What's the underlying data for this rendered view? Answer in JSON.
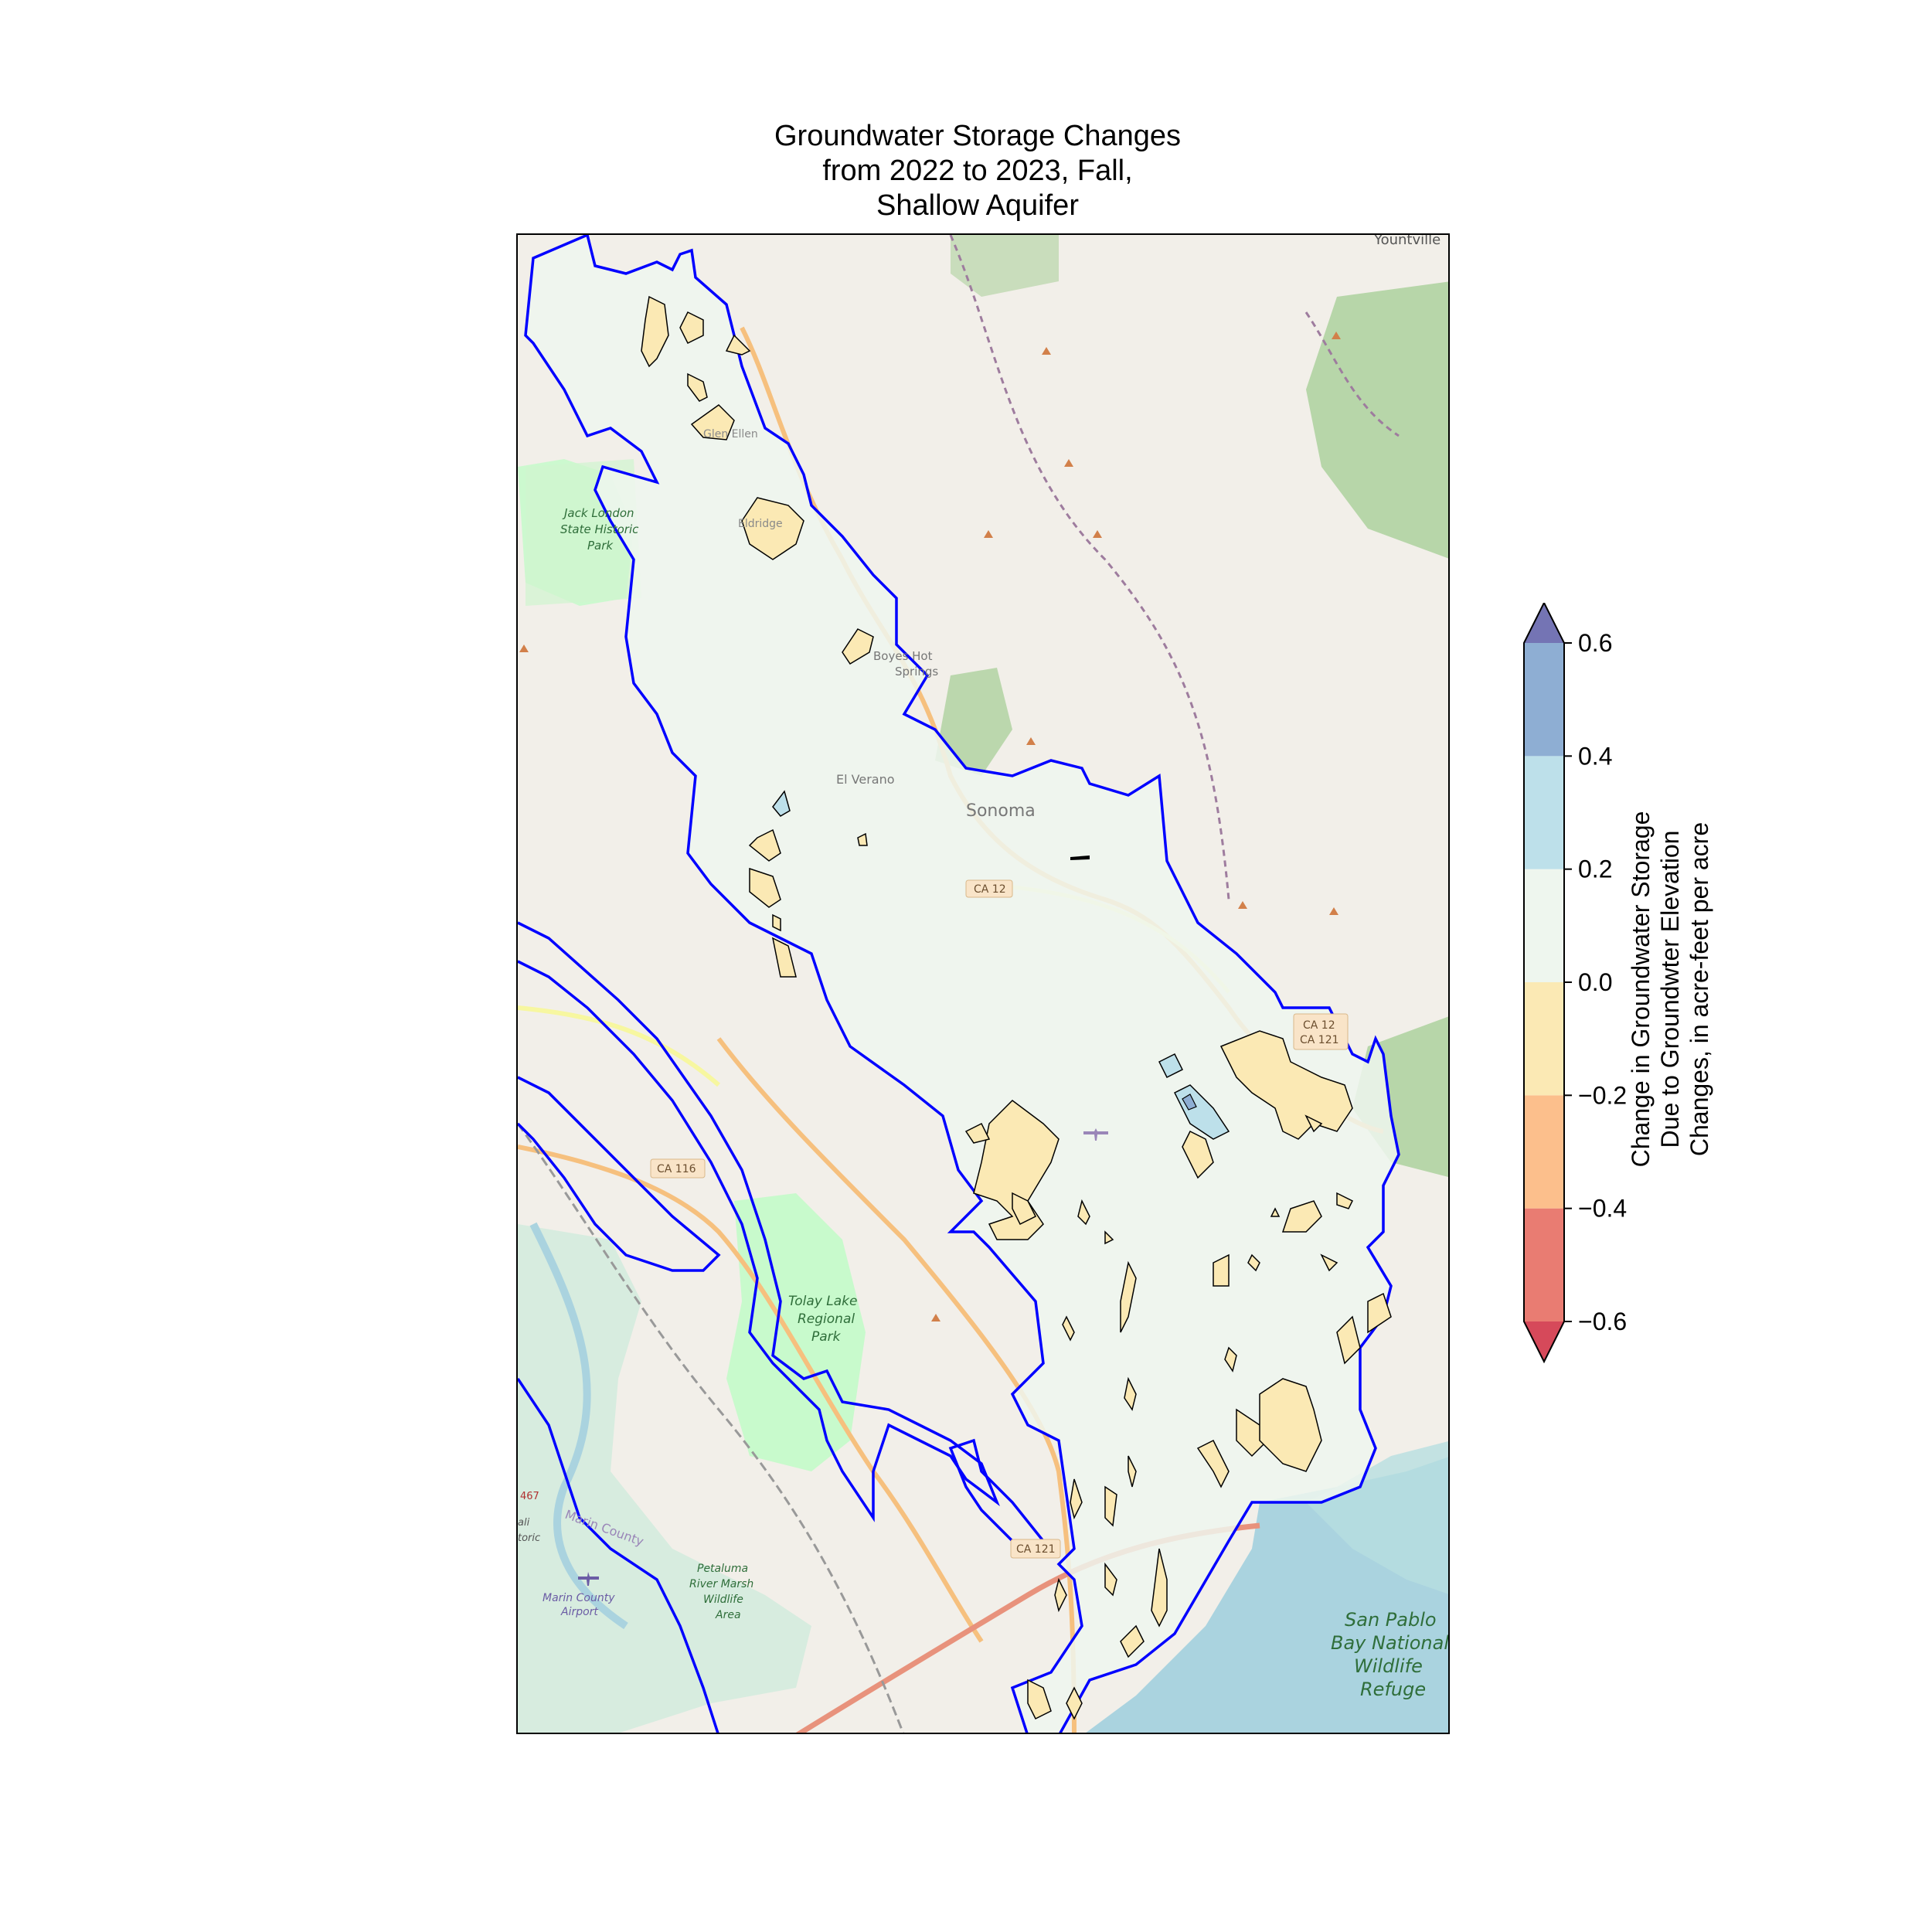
{
  "title": {
    "line1": "Groundwater Storage Changes",
    "line2": "from 2022 to 2023, Fall,",
    "line3": "Shallow Aquifer"
  },
  "map": {
    "place_labels": {
      "yountville": "Yountville",
      "jack_london_1": "Jack London",
      "jack_london_2": "State Historic",
      "jack_london_3": "Park",
      "boyes_1": "Boyes Hot",
      "boyes_2": "Springs",
      "el_verano": "El Verano",
      "sonoma": "Sonoma",
      "ca12": "CA 12",
      "ca12_121_a": "CA 12",
      "ca12_121_b": "CA 121",
      "ca116": "CA 116",
      "tolay_1": "Tolay Lake",
      "tolay_2": "Regional",
      "tolay_3": "Park",
      "ca121": "CA 121",
      "marin_county": "Marin County",
      "marin_airport_1": "Marin County",
      "marin_airport_2": "Airport",
      "petaluma_1": "Petaluma",
      "petaluma_2": "River Marsh",
      "petaluma_3": "Wildlife",
      "petaluma_4": "Area",
      "san_pablo_1": "San Pablo",
      "san_pablo_2": "Bay National",
      "san_pablo_3": "Wildlife",
      "san_pablo_4": "Refuge",
      "glen_ellen": "Glen Ellen",
      "eldridge": "Eldridge",
      "hwy_467": "467",
      "marin_historic_1": "ali",
      "marin_historic_2": "toric"
    },
    "colors": {
      "boundary": "#0000ff",
      "land": "#f2efe9",
      "water": "#aad3df",
      "park": "#c8facc",
      "forest": "#add19e",
      "near_zero": "#eef6ee",
      "neg_0_2": "#fbe9b4",
      "neg_0_4": "#fcbf8c",
      "neg_0_6": "#e97c72",
      "pos_0_2": "#bde0ea",
      "pos_0_4": "#8eaed3",
      "pos_0_6": "#7474b4"
    }
  },
  "colorbar": {
    "label_line1": "Change in Groundwater Storage",
    "label_line2": "Due to Groundwter Elevation",
    "label_line3": "Changes, in acre-feet per acre",
    "ticks": [
      "0.6",
      "0.4",
      "0.2",
      "0.0",
      "−0.2",
      "−0.4",
      "−0.6"
    ],
    "levels": [
      -0.6,
      -0.4,
      -0.2,
      0.0,
      0.2,
      0.4,
      0.6
    ],
    "extend": "both"
  }
}
